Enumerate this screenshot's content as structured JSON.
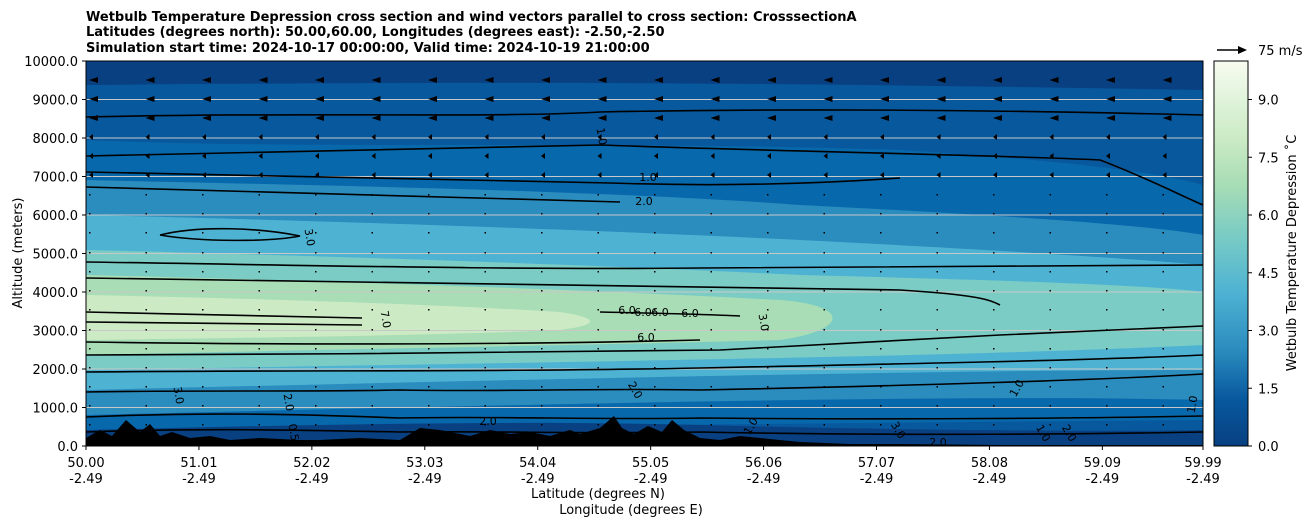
{
  "chart_data": {
    "type": "heatmap",
    "title_lines": [
      "Wetbulb Temperature Depression cross section and wind vectors parallel to cross section: CrosssectionA",
      "Latitudes (degrees north): 50.00,60.00, Longitudes (degrees east): -2.50,-2.50",
      "Simulation start time: 2024-10-17 00:00:00, Valid time: 2024-10-19 21:00:00"
    ],
    "ylabel": "Altitude (meters)",
    "xlabel_lat": "Latitude (degrees N)",
    "xlabel_lon": "Longitude (degrees E)",
    "colorbar_label": "Wetbulb Temperature Depression ˚C",
    "quiver_key": "75 m/s",
    "xlim": [
      50.0,
      59.99
    ],
    "ylim": [
      0,
      10000
    ],
    "x_ticks_lat": [
      "50.00",
      "51.01",
      "52.02",
      "53.03",
      "54.04",
      "55.05",
      "56.06",
      "57.07",
      "58.08",
      "59.09",
      "59.99"
    ],
    "x_ticks_lon": [
      "-2.49",
      "-2.49",
      "-2.49",
      "-2.49",
      "-2.49",
      "-2.49",
      "-2.49",
      "-2.49",
      "-2.49",
      "-2.49",
      "-2.49"
    ],
    "y_ticks": [
      "0.0",
      "1000.0",
      "2000.0",
      "3000.0",
      "4000.0",
      "5000.0",
      "6000.0",
      "7000.0",
      "8000.0",
      "9000.0",
      "10000.0"
    ],
    "colorbar_ticks": [
      "0.0",
      "1.5",
      "3.0",
      "4.5",
      "6.0",
      "7.5",
      "9.0"
    ],
    "colorbar_range": [
      0,
      10
    ],
    "grid": "horizontal",
    "contour_labels": [
      "1.0",
      "1.0",
      "2.0",
      "3.0",
      "6.0",
      "6.0",
      "6.0",
      "6.0",
      "7.0",
      "6.0",
      "3.0",
      "3.0",
      "2.0",
      "2.0",
      "2.0",
      "1.0",
      "1.0",
      "2.0",
      "1.0",
      "3.0",
      "2.0",
      "0.5",
      "1.0"
    ],
    "palette": [
      "#084081",
      "#08589e",
      "#2b8cbe",
      "#4eb3d3",
      "#7bccc4",
      "#a8ddb5",
      "#ccebc5",
      "#e0f3db",
      "#f7fcf0"
    ]
  }
}
